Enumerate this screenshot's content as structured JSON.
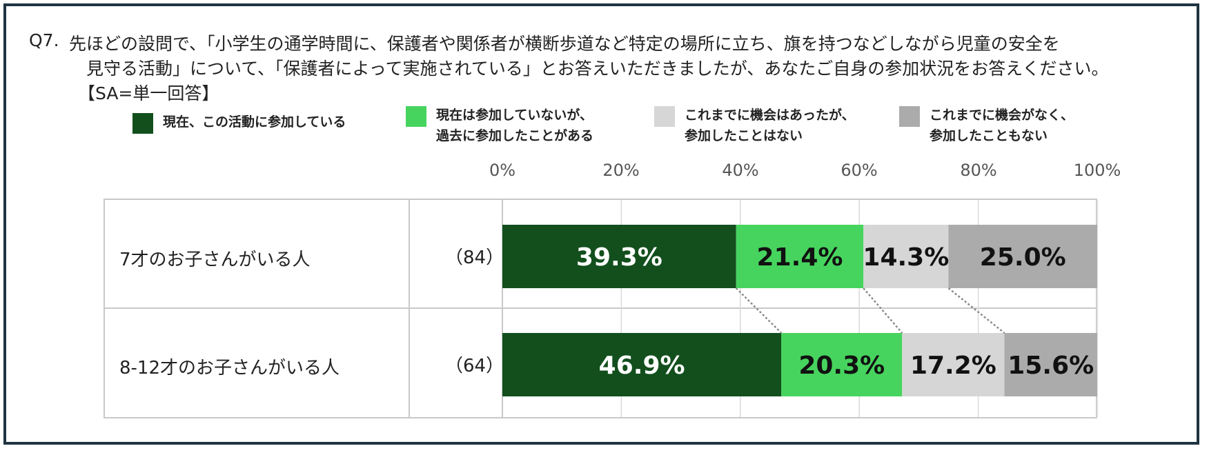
{
  "question": {
    "number": "Q7.",
    "line1": "先ほどの設問で、「小学生の通学時間に、保護者や関係者が横断歩道など特定の場所に立ち、旗を持つなどしながら児童の安全を",
    "line2": "見守る活動」について、「保護者によって実施されている」とお答えいただきましたが、あなたご自身の参加状況をお答えください。",
    "line3": "【SA=単一回答】"
  },
  "legend": [
    {
      "label": "現在、この活動に参加している",
      "color": "#124f1d"
    },
    {
      "label": "現在は参加していないが、\n過去に参加したことがある",
      "color": "#47d45e"
    },
    {
      "label": "これまでに機会はあったが、\n参加したことはない",
      "color": "#d6d6d6"
    },
    {
      "label": "これまでに機会がなく、\n参加したこともない",
      "color": "#ababab"
    }
  ],
  "chart_data": {
    "type": "bar",
    "orientation": "horizontal",
    "stacked": true,
    "percent": true,
    "x_ticks": [
      "0%",
      "20%",
      "40%",
      "60%",
      "80%",
      "100%"
    ],
    "xlim": [
      0,
      100
    ],
    "grid": true,
    "legend_position": "top",
    "categories": [
      "7才のお子さんがいる人",
      "8-12才のお子さんがいる人"
    ],
    "sample_sizes": [
      "（84）",
      "（64）"
    ],
    "series": [
      {
        "name": "現在、この活動に参加している",
        "values": [
          39.3,
          46.9
        ],
        "color": "#124f1d",
        "label_color": "#ffffff"
      },
      {
        "name": "現在は参加していないが、過去に参加したことがある",
        "values": [
          21.4,
          20.3
        ],
        "color": "#47d45e",
        "label_color": "#111111"
      },
      {
        "name": "これまでに機会はあったが、参加したことはない",
        "values": [
          14.3,
          17.2
        ],
        "color": "#d6d6d6",
        "label_color": "#111111"
      },
      {
        "name": "これまでに機会がなく、参加したこともない",
        "values": [
          25.0,
          15.6
        ],
        "color": "#ababab",
        "label_color": "#111111"
      }
    ],
    "value_labels": [
      [
        "39.3%",
        "21.4%",
        "14.3%",
        "25.0%"
      ],
      [
        "46.9%",
        "20.3%",
        "17.2%",
        "15.6%"
      ]
    ]
  }
}
